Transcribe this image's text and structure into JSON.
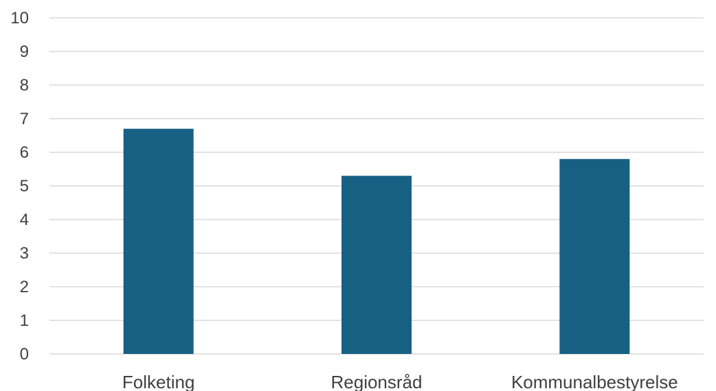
{
  "chart_data": {
    "type": "bar",
    "categories": [
      "Folketing",
      "Regionsråd",
      "Kommunalbestyrelse"
    ],
    "values": [
      6.7,
      5.3,
      5.8
    ],
    "title": "",
    "xlabel": "",
    "ylabel": "",
    "ylim": [
      0,
      10
    ],
    "yticks": [
      0,
      1,
      2,
      3,
      4,
      5,
      6,
      7,
      8,
      9,
      10
    ],
    "grid": true,
    "bar_color": "#176083",
    "legend": "none"
  }
}
